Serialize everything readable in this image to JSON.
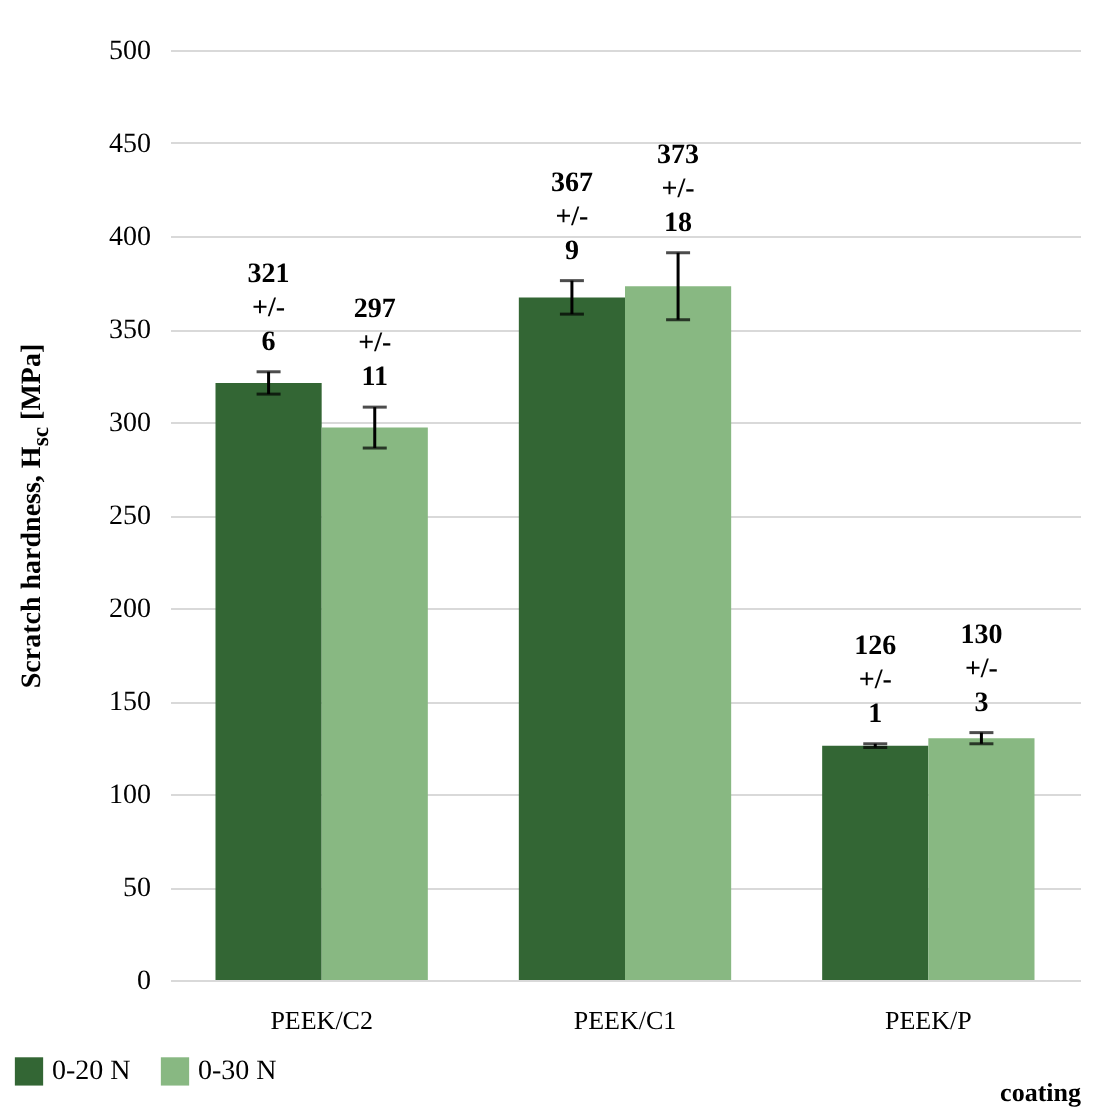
{
  "chart_data": {
    "type": "bar",
    "xlabel": "coating",
    "ylabel": "Scratch hardness, H$_{sc}$ [MPa]",
    "categories": [
      "PEEK/C2",
      "PEEK/C1",
      "PEEK/P"
    ],
    "series": [
      {
        "name": "0-20 N",
        "color": "#336634",
        "values": [
          321,
          367,
          126
        ],
        "errors": [
          6,
          9,
          1
        ],
        "value_labels": [
          "321 +/- 6",
          "367 +/- 9",
          "126 +/- 1"
        ]
      },
      {
        "name": "0-30 N",
        "color": "#88b882",
        "values": [
          297,
          373,
          130
        ],
        "errors": [
          11,
          18,
          3
        ],
        "value_labels": [
          "297 +/- 11",
          "373 +/- 18",
          "130 +/- 3"
        ]
      }
    ],
    "ylim": [
      0,
      500
    ],
    "yticks": [
      0,
      50,
      100,
      150,
      200,
      250,
      300,
      350,
      400,
      450,
      500
    ],
    "grid": "y",
    "legend": "bottom left"
  }
}
